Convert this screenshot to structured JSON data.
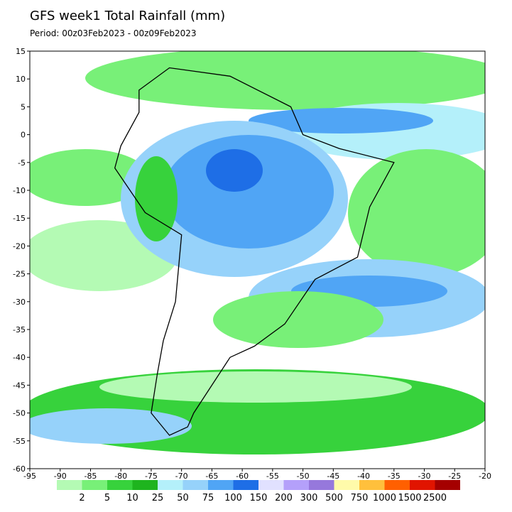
{
  "map": {
    "title": "GFS week1 Total Rainfall (mm)",
    "subtitle": "Period: 00z03Feb2023 - 00z09Feb2023",
    "xlim": [
      -95,
      -20
    ],
    "ylim": [
      -60,
      15
    ],
    "xticks": [
      -95,
      -90,
      -85,
      -80,
      -75,
      -70,
      -65,
      -60,
      -55,
      -50,
      -45,
      -40,
      -35,
      -30,
      -25,
      -20
    ],
    "yticks": [
      15,
      10,
      5,
      0,
      -5,
      -10,
      -15,
      -20,
      -25,
      -30,
      -35,
      -40,
      -45,
      -50,
      -55,
      -60
    ],
    "colorbar": {
      "labels": [
        2,
        5,
        10,
        25,
        50,
        75,
        100,
        150,
        200,
        300,
        500,
        750,
        1000,
        1500,
        2500
      ],
      "colors": [
        "#b4fab4",
        "#78f078",
        "#37d23c",
        "#1eb41e",
        "#b4f0fa",
        "#96d2fa",
        "#50a5f5",
        "#1e6ee6",
        "#e1e1ff",
        "#b4a0fa",
        "#9678dc",
        "#fffaaa",
        "#ffc03c",
        "#ff6000",
        "#e11400",
        "#a50000"
      ]
    }
  }
}
